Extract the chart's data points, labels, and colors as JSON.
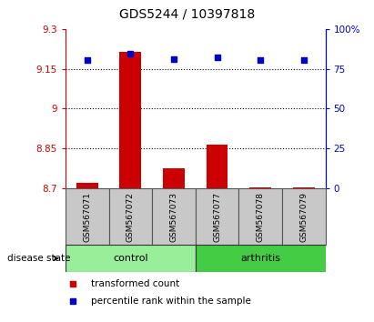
{
  "title": "GDS5244 / 10397818",
  "samples": [
    "GSM567071",
    "GSM567072",
    "GSM567073",
    "GSM567077",
    "GSM567078",
    "GSM567079"
  ],
  "transformed_count": [
    8.72,
    9.215,
    8.775,
    8.865,
    8.705,
    8.703
  ],
  "percentile_rank": [
    80.5,
    84.5,
    81.0,
    82.5,
    80.5,
    80.5
  ],
  "ylim_left": [
    8.7,
    9.3
  ],
  "ylim_right": [
    0,
    100
  ],
  "yticks_left": [
    8.7,
    8.85,
    9.0,
    9.15,
    9.3
  ],
  "yticks_right": [
    0,
    25,
    50,
    75,
    100
  ],
  "ytick_labels_left": [
    "8.7",
    "8.85",
    "9",
    "9.15",
    "9.3"
  ],
  "ytick_labels_right": [
    "0",
    "25",
    "50",
    "75",
    "100%"
  ],
  "hlines": [
    8.85,
    9.0,
    9.15
  ],
  "bar_color": "#cc0000",
  "dot_color": "#0000cc",
  "bar_width": 0.5,
  "base_value": 8.7,
  "control_color": "#99ee99",
  "arthritis_color": "#44cc44",
  "label_row_color": "#c8c8c8",
  "legend_red_label": "transformed count",
  "legend_blue_label": "percentile rank within the sample",
  "disease_state_label": "disease state",
  "control_label": "control",
  "arthritis_label": "arthritis",
  "title_fontsize": 10,
  "tick_fontsize": 7.5,
  "axis_left_color": "#cc0000",
  "axis_right_color": "#0000cc",
  "spine_color": "#888888"
}
